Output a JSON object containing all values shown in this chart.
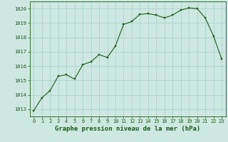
{
  "x": [
    0,
    1,
    2,
    3,
    4,
    5,
    6,
    7,
    8,
    9,
    10,
    11,
    12,
    13,
    14,
    15,
    16,
    17,
    18,
    19,
    20,
    21,
    22,
    23
  ],
  "y": [
    1012.9,
    1013.8,
    1014.3,
    1015.3,
    1015.4,
    1015.1,
    1016.1,
    1016.3,
    1016.8,
    1016.6,
    1017.4,
    1018.9,
    1019.1,
    1019.6,
    1019.65,
    1019.55,
    1019.35,
    1019.55,
    1019.9,
    1020.05,
    1020.0,
    1019.35,
    1018.1,
    1016.5
  ],
  "line_color": "#1a5c1a",
  "marker_color": "#1a5c1a",
  "bg_color": "#cce8e0",
  "grid_color": "#aad4cc",
  "xlabel": "Graphe pression niveau de la mer (hPa)",
  "ylim_min": 1012.5,
  "ylim_max": 1020.5,
  "yticks": [
    1013,
    1014,
    1015,
    1016,
    1017,
    1018,
    1019,
    1020
  ],
  "xticks": [
    0,
    1,
    2,
    3,
    4,
    5,
    6,
    7,
    8,
    9,
    10,
    11,
    12,
    13,
    14,
    15,
    16,
    17,
    18,
    19,
    20,
    21,
    22,
    23
  ],
  "tick_fontsize": 5.0,
  "label_fontsize": 6.5,
  "label_fontweight": "bold"
}
